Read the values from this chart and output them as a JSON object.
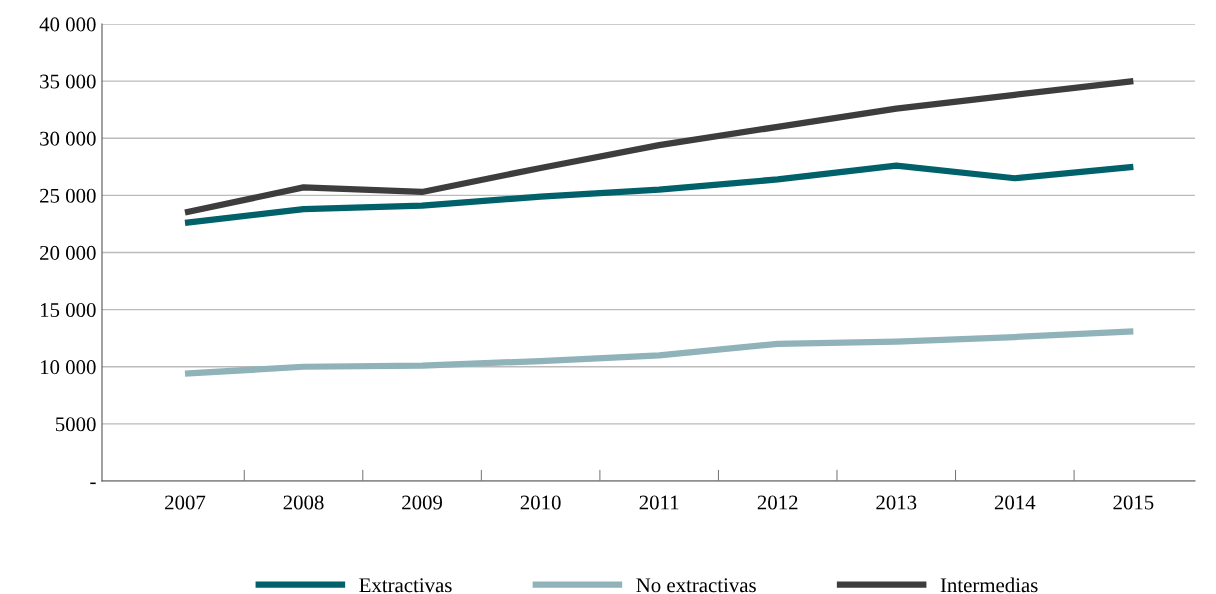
{
  "chart_data": {
    "type": "line",
    "categories": [
      "2007",
      "2008",
      "2009",
      "2010",
      "2011",
      "2012",
      "2013",
      "2014",
      "2015"
    ],
    "series": [
      {
        "name": "Extractivas",
        "color": "#00616b",
        "values": [
          22600,
          23800,
          24100,
          24900,
          25500,
          26400,
          27600,
          26500,
          27500
        ]
      },
      {
        "name": "No extractivas",
        "color": "#8fb3b9",
        "values": [
          9400,
          10000,
          10100,
          10500,
          11000,
          12000,
          12200,
          12600,
          13100
        ]
      },
      {
        "name": "Intermedias",
        "color": "#3d3d3d",
        "values": [
          23500,
          25700,
          25300,
          27400,
          29400,
          31000,
          32600,
          33800,
          35000
        ]
      }
    ],
    "ylim": [
      0,
      40000
    ],
    "yticks": [
      {
        "value": 0,
        "label": "-"
      },
      5000,
      {
        "value": 10000,
        "label": "10 000"
      },
      {
        "value": 15000,
        "label": "15 000"
      },
      {
        "value": 20000,
        "label": "20 000"
      },
      {
        "value": 25000,
        "label": "25 000"
      },
      {
        "value": 30000,
        "label": "30 000"
      },
      {
        "value": 35000,
        "label": "35 000"
      },
      {
        "value": 40000,
        "label": "40 000"
      }
    ],
    "grid": "y",
    "legend": "bottom",
    "marker": "none",
    "line_style": "solid"
  }
}
